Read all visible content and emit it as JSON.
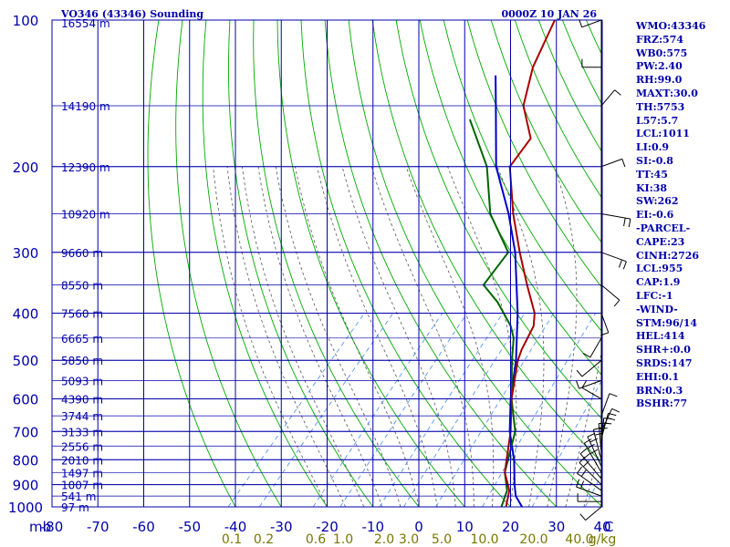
{
  "chart_data": {
    "type": "line",
    "title_left": "VO346 (43346) Sounding",
    "title_right": "0000Z 10 JAN 26",
    "colors": {
      "grid": "#0000aa",
      "dry_adiabat": "#00aa00",
      "moist_adiabat": "#555555",
      "mixing_ratio": "#4488ff",
      "temperature": "#aa0000",
      "dewpoint": "#006600",
      "parcel": "#0000cc",
      "wind": "#000000",
      "label_blue": "#0000aa",
      "label_olive": "#777700"
    },
    "x_axis": {
      "label": "C",
      "ticks": [
        -80,
        -70,
        -60,
        -50,
        -40,
        -30,
        -20,
        -10,
        0,
        10,
        20,
        30,
        40
      ],
      "range": [
        -80,
        40
      ]
    },
    "y_axis": {
      "label": "mb",
      "ticks": [
        100,
        200,
        300,
        400,
        500,
        600,
        700,
        800,
        900,
        1000
      ],
      "range": [
        100,
        1000
      ]
    },
    "height_labels": [
      {
        "p": 100,
        "text": "16554 m"
      },
      {
        "p": 150,
        "text": "14190 m"
      },
      {
        "p": 200,
        "text": "12390 m"
      },
      {
        "p": 250,
        "text": "10920 m"
      },
      {
        "p": 300,
        "text": "9660 m"
      },
      {
        "p": 350,
        "text": "8550 m"
      },
      {
        "p": 400,
        "text": "7560 m"
      },
      {
        "p": 450,
        "text": "6665 m"
      },
      {
        "p": 500,
        "text": "5850 m"
      },
      {
        "p": 550,
        "text": "5093 m"
      },
      {
        "p": 600,
        "text": "4390 m"
      },
      {
        "p": 650,
        "text": "3744 m"
      },
      {
        "p": 700,
        "text": "3133 m"
      },
      {
        "p": 750,
        "text": "2556 m"
      },
      {
        "p": 800,
        "text": "2010 m"
      },
      {
        "p": 850,
        "text": "1497 m"
      },
      {
        "p": 900,
        "text": "1007 m"
      },
      {
        "p": 950,
        "text": "541 m"
      },
      {
        "p": 1000,
        "text": "97 m"
      }
    ],
    "mixing_ratio_labels": [
      "0.1",
      "0.2",
      "0.6",
      "1.0",
      "2.0",
      "3.0",
      "5.0",
      "10.0",
      "20.0",
      "40.0",
      "g/kg"
    ],
    "temperature": [
      [
        1009,
        19.6
      ],
      [
        1000,
        19.0
      ],
      [
        925,
        16.5
      ],
      [
        850,
        12.0
      ],
      [
        700,
        5.2
      ],
      [
        600,
        -1.0
      ],
      [
        500,
        -7.2
      ],
      [
        475,
        -8.5
      ],
      [
        425,
        -10.5
      ],
      [
        400,
        -12.8
      ],
      [
        350,
        -20.0
      ],
      [
        300,
        -28.0
      ],
      [
        250,
        -37.0
      ],
      [
        200,
        -47.0
      ],
      [
        175,
        -48.0
      ],
      [
        150,
        -56.0
      ],
      [
        125,
        -61.5
      ],
      [
        100,
        -66.0
      ]
    ],
    "dewpoint": [
      [
        1009,
        18.5
      ],
      [
        1000,
        18.0
      ],
      [
        925,
        16.0
      ],
      [
        850,
        12.0
      ],
      [
        700,
        6.2
      ],
      [
        600,
        -1.0
      ],
      [
        500,
        -8.5
      ],
      [
        450,
        -12.5
      ],
      [
        425,
        -15.5
      ],
      [
        380,
        -23.0
      ],
      [
        350,
        -29.5
      ],
      [
        300,
        -30.5
      ],
      [
        250,
        -42.0
      ],
      [
        200,
        -52.0
      ],
      [
        160,
        -65.0
      ]
    ],
    "parcel": [
      [
        1000,
        22.5
      ],
      [
        950,
        19.0
      ],
      [
        900,
        16.5
      ],
      [
        800,
        11.5
      ],
      [
        700,
        5.0
      ],
      [
        600,
        -1.2
      ],
      [
        500,
        -7.6
      ],
      [
        400,
        -16.5
      ],
      [
        300,
        -29.0
      ],
      [
        250,
        -38.0
      ],
      [
        200,
        -50.0
      ],
      [
        150,
        -62.0
      ],
      [
        130,
        -68.0
      ]
    ],
    "wind_barbs": [
      {
        "p": 1000,
        "dir": 230,
        "spd": 8
      },
      {
        "p": 975,
        "dir": 270,
        "spd": 12
      },
      {
        "p": 950,
        "dir": 290,
        "spd": 16
      },
      {
        "p": 925,
        "dir": 305,
        "spd": 20
      },
      {
        "p": 900,
        "dir": 315,
        "spd": 22
      },
      {
        "p": 875,
        "dir": 320,
        "spd": 24
      },
      {
        "p": 850,
        "dir": 330,
        "spd": 26
      },
      {
        "p": 825,
        "dir": 335,
        "spd": 24
      },
      {
        "p": 800,
        "dir": 345,
        "spd": 22
      },
      {
        "p": 775,
        "dir": 355,
        "spd": 20
      },
      {
        "p": 750,
        "dir": 5,
        "spd": 18
      },
      {
        "p": 725,
        "dir": 15,
        "spd": 16
      },
      {
        "p": 700,
        "dir": 25,
        "spd": 14
      },
      {
        "p": 650,
        "dir": 20,
        "spd": 12
      },
      {
        "p": 600,
        "dir": 300,
        "spd": 10
      },
      {
        "p": 550,
        "dir": 250,
        "spd": 12
      },
      {
        "p": 500,
        "dir": 230,
        "spd": 14
      },
      {
        "p": 450,
        "dir": 210,
        "spd": 10
      },
      {
        "p": 400,
        "dir": 160,
        "spd": 8
      },
      {
        "p": 350,
        "dir": 130,
        "spd": 12
      },
      {
        "p": 300,
        "dir": 110,
        "spd": 16
      },
      {
        "p": 250,
        "dir": 100,
        "spd": 20
      },
      {
        "p": 200,
        "dir": 70,
        "spd": 10
      },
      {
        "p": 150,
        "dir": 40,
        "spd": 8
      },
      {
        "p": 125,
        "dir": 270,
        "spd": 6
      },
      {
        "p": 100,
        "dir": 250,
        "spd": 8
      }
    ]
  },
  "stats": [
    "WMO:43346",
    "FRZ:574",
    "WB0:575",
    "PW:2.40",
    "RH:99.0",
    "MAXT:30.0",
    "TH:5753",
    "L57:5.7",
    "LCL:1011",
    "LI:0.9",
    "SI:-0.8",
    "TT:45",
    "KI:38",
    "SW:262",
    "EI:-0.6",
    "-PARCEL-",
    "CAPE:23",
    "CINH:2726",
    "LCL:955",
    "CAP:1.9",
    "LFC:-1",
    "-WIND-",
    "STM:96/14",
    "HEL:414",
    "SHR+:0.0",
    "SRDS:147",
    "EHI:0.1",
    "BRN:0.3",
    "BSHR:77"
  ]
}
